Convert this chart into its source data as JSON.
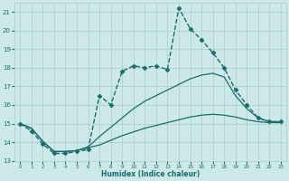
{
  "xlabel": "Humidex (Indice chaleur)",
  "background_color": "#cce8e8",
  "grid_color": "#aacccc",
  "line_color": "#1a6b6b",
  "xlim": [
    -0.5,
    23.5
  ],
  "ylim": [
    13,
    21.5
  ],
  "yticks": [
    13,
    14,
    15,
    16,
    17,
    18,
    19,
    20,
    21
  ],
  "xticks": [
    0,
    1,
    2,
    3,
    4,
    5,
    6,
    7,
    8,
    9,
    10,
    11,
    12,
    13,
    14,
    15,
    16,
    17,
    18,
    19,
    20,
    21,
    22,
    23
  ],
  "series": [
    {
      "x": [
        0,
        1,
        2,
        3,
        4,
        5,
        6,
        7,
        8,
        9,
        10,
        11,
        12,
        13,
        14,
        15,
        16,
        17,
        18,
        19,
        20,
        21,
        22,
        23
      ],
      "y": [
        15.0,
        14.6,
        13.9,
        13.4,
        13.4,
        13.5,
        13.6,
        16.5,
        16.0,
        17.8,
        18.1,
        18.0,
        18.1,
        17.9,
        21.2,
        20.1,
        19.5,
        18.8,
        18.0,
        16.8,
        16.0,
        15.3,
        15.1,
        15.1
      ],
      "has_marker": true,
      "markersize": 2.5,
      "linewidth": 1.0,
      "linestyle": "--"
    },
    {
      "x": [
        0,
        1,
        2,
        3,
        4,
        5,
        6,
        7,
        8,
        9,
        10,
        11,
        12,
        13,
        14,
        15,
        16,
        17,
        18,
        19,
        20,
        21,
        22,
        23
      ],
      "y": [
        15.0,
        14.75,
        14.05,
        13.5,
        13.5,
        13.55,
        13.75,
        14.3,
        14.8,
        15.3,
        15.8,
        16.2,
        16.5,
        16.8,
        17.1,
        17.4,
        17.6,
        17.7,
        17.5,
        16.5,
        15.8,
        15.3,
        15.1,
        15.1
      ],
      "has_marker": false,
      "markersize": 0,
      "linewidth": 0.9,
      "linestyle": "-"
    },
    {
      "x": [
        0,
        1,
        2,
        3,
        4,
        5,
        6,
        7,
        8,
        9,
        10,
        11,
        12,
        13,
        14,
        15,
        16,
        17,
        18,
        19,
        20,
        21,
        22,
        23
      ],
      "y": [
        15.0,
        14.75,
        14.05,
        13.5,
        13.5,
        13.55,
        13.7,
        13.85,
        14.1,
        14.35,
        14.55,
        14.75,
        14.9,
        15.05,
        15.2,
        15.35,
        15.45,
        15.5,
        15.45,
        15.35,
        15.2,
        15.1,
        15.05,
        15.05
      ],
      "has_marker": false,
      "markersize": 0,
      "linewidth": 0.9,
      "linestyle": "-"
    }
  ]
}
